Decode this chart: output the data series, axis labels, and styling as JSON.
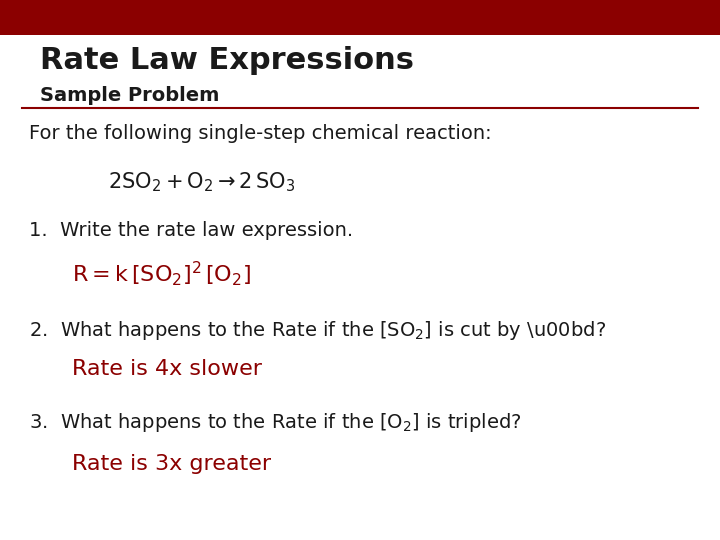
{
  "bg_color": "#ffffff",
  "header_bar_color": "#8B0000",
  "body_color": "#1a1a1a",
  "red_color": "#8B0000",
  "divider_color": "#8B0000",
  "title_text": "Rate Law Expressions",
  "subtitle_text": "Sample Problem",
  "intro_text": "For the following single-step chemical reaction:",
  "item1_q": "1.  Write the rate law expression.",
  "item1_a": "R = k [SO₂]² [O₂]",
  "item2_q_pre": "2.  What happens to the Rate if the [SO",
  "item2_q_post": "] is cut by ½?",
  "item2_a": "Rate is 4x slower",
  "item3_q_pre": "3.  What happens to the Rate if the [O",
  "item3_q_post": "] is tripled?",
  "item3_a": "Rate is 3x greater"
}
